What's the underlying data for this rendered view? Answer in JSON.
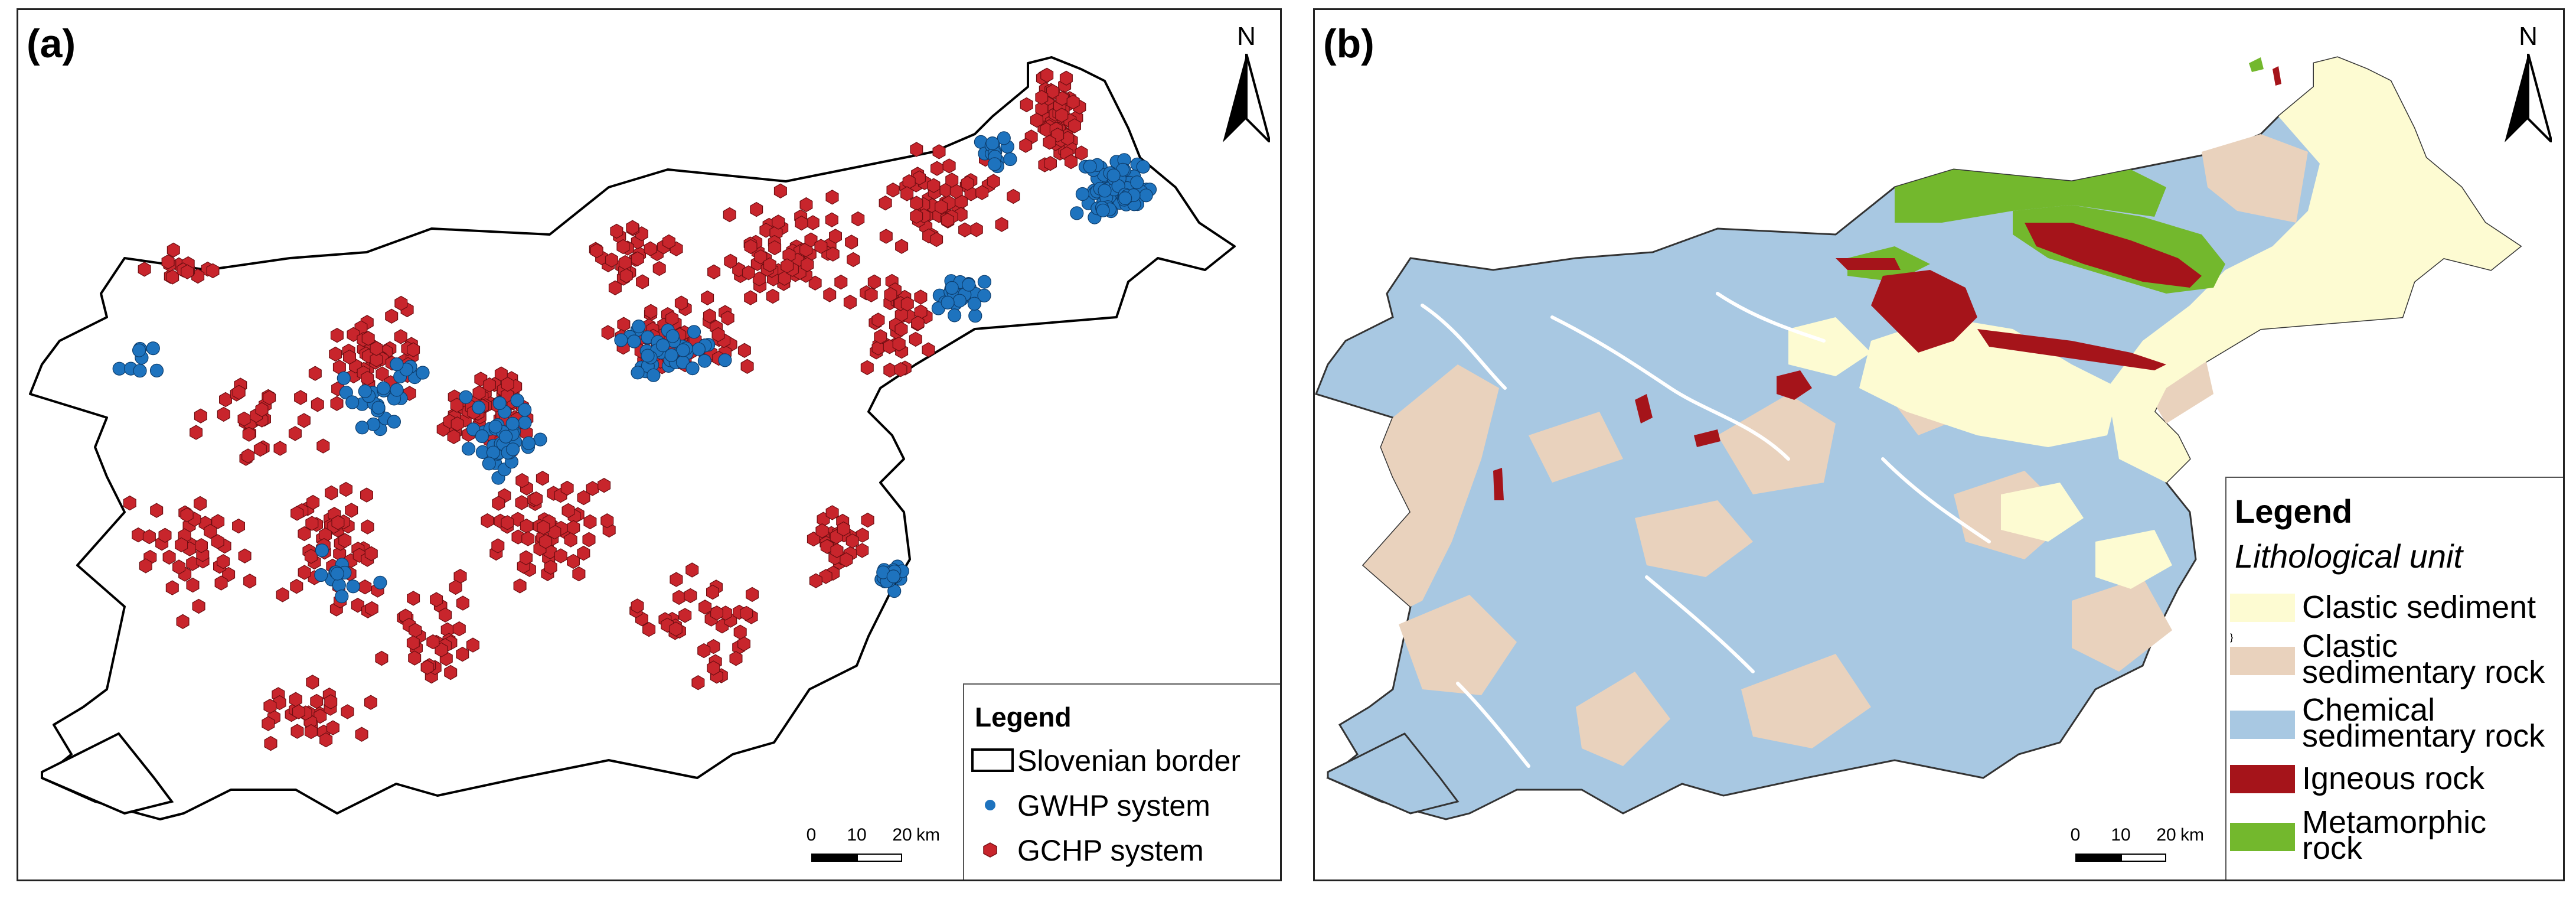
{
  "panel_a": {
    "label": "(a)",
    "north_label": "N",
    "legend": {
      "title": "Legend",
      "items": [
        {
          "label": "Slovenian border",
          "symbol": "border-outline"
        },
        {
          "label": "GWHP system",
          "color": "#1e73be",
          "symbol": "blue-circle"
        },
        {
          "label": "GCHP system",
          "color": "#c8252c",
          "symbol": "red-hexagon"
        }
      ]
    },
    "scale": {
      "ticks": [
        "0",
        "10",
        "20"
      ],
      "unit": "km"
    }
  },
  "panel_b": {
    "label": "(b)",
    "north_label": "N",
    "legend": {
      "title": "Legend",
      "subtitle": "Lithological unit",
      "items": [
        {
          "line1": "Clastic sediment",
          "line2": "",
          "color": "#fdfbd2"
        },
        {
          "line1": "Clastic",
          "line2": "sedimentary rock",
          "color": "#e9d2bd"
        },
        {
          "line1": "Chemical",
          "line2": "sedimentary rock",
          "color": "#a8c8e2"
        },
        {
          "line1": "Igneous rock",
          "line2": "",
          "color": "#a5141a"
        },
        {
          "line1": "Metamorphic",
          "line2": "rock",
          "color": "#73b82d"
        }
      ]
    },
    "scale": {
      "ticks": [
        "0",
        "10",
        "20"
      ],
      "unit": "km"
    }
  }
}
